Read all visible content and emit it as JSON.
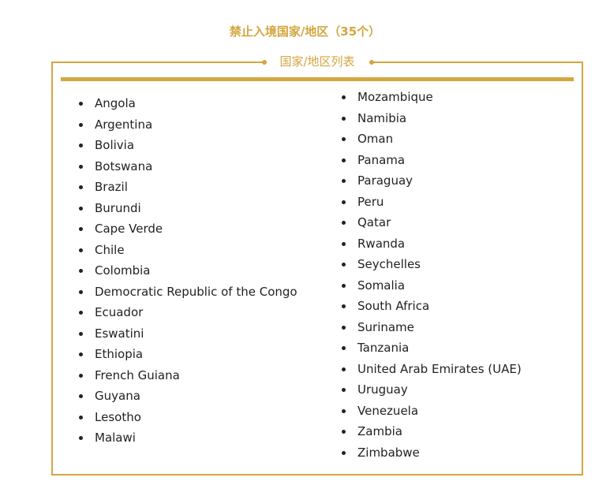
{
  "title": "禁止入境国家/地区（35个）",
  "legend": "国家/地区列表",
  "accent_color": "#d4a640",
  "left_column": [
    "Angola",
    "Argentina",
    "Bolivia",
    "Botswana",
    "Brazil",
    "Burundi",
    "Cape Verde",
    "Chile",
    "Colombia",
    "Democratic Republic of the Congo",
    "Ecuador",
    "Eswatini",
    "Ethiopia",
    "French Guiana",
    "Guyana",
    "Lesotho",
    "Malawi"
  ],
  "right_column": [
    "Mozambique",
    "Namibia",
    "Oman",
    "Panama",
    "Paraguay",
    "Peru",
    "Qatar",
    "Rwanda",
    "Seychelles",
    "Somalia",
    "South Africa",
    "Suriname",
    "Tanzania",
    "United Arab Emirates (UAE)",
    "Uruguay",
    "Venezuela",
    "Zambia",
    "Zimbabwe"
  ]
}
